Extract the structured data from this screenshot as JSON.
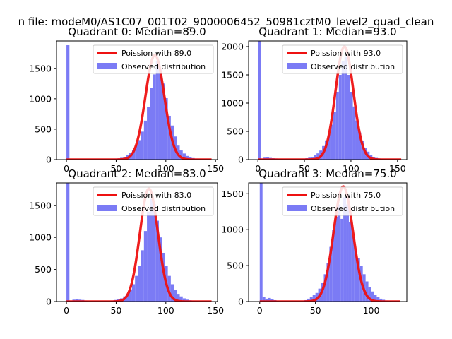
{
  "suptitle": "n file: modeM0/AS1C07_001T02_9000006452_50981cztM0_level2_quad_clean",
  "colors": {
    "hist": "#7b7bf5",
    "fit": "#ee1111",
    "fit_alpha_top": "#f08888",
    "axes": "#000000"
  },
  "chart_data": [
    {
      "type": "bar",
      "title": "Quadrant 0: Median=89.0",
      "xlim": [
        -10,
        152
      ],
      "ylim": [
        0,
        1950
      ],
      "xticks": [
        0,
        50,
        100,
        150
      ],
      "yticks": [
        0,
        500,
        1000,
        1500
      ],
      "legend": {
        "placement": "top-right",
        "entries": [
          "Poission with 89.0",
          "Observed distribution"
        ]
      },
      "hist": {
        "bin_width": 3,
        "bins": [
          [
            0,
            1880
          ],
          [
            3,
            8
          ],
          [
            6,
            6
          ],
          [
            9,
            5
          ],
          [
            12,
            4
          ],
          [
            15,
            3
          ],
          [
            18,
            2
          ],
          [
            45,
            10
          ],
          [
            48,
            15
          ],
          [
            51,
            20
          ],
          [
            54,
            30
          ],
          [
            57,
            45
          ],
          [
            60,
            70
          ],
          [
            63,
            110
          ],
          [
            66,
            160
          ],
          [
            69,
            240
          ],
          [
            72,
            320
          ],
          [
            75,
            460
          ],
          [
            78,
            640
          ],
          [
            81,
            860
          ],
          [
            84,
            1180
          ],
          [
            87,
            1400
          ],
          [
            90,
            1620
          ],
          [
            93,
            1480
          ],
          [
            96,
            1250
          ],
          [
            99,
            1010
          ],
          [
            102,
            720
          ],
          [
            105,
            560
          ],
          [
            108,
            380
          ],
          [
            111,
            230
          ],
          [
            114,
            150
          ],
          [
            117,
            100
          ],
          [
            120,
            60
          ],
          [
            123,
            40
          ],
          [
            126,
            25
          ],
          [
            129,
            15
          ],
          [
            132,
            10
          ],
          [
            135,
            6
          ],
          [
            138,
            4
          ],
          [
            141,
            3
          ],
          [
            144,
            2
          ]
        ]
      },
      "fit": {
        "mean": 89.0,
        "peak": 1720,
        "sigma": 9.5
      }
    },
    {
      "type": "bar",
      "title": "Quadrant 1: Median=93.0",
      "xlim": [
        -10,
        160
      ],
      "ylim": [
        0,
        2100
      ],
      "xticks": [
        0,
        50,
        100,
        150
      ],
      "yticks": [
        0,
        500,
        1000,
        1500,
        2000
      ],
      "legend": {
        "placement": "top-right",
        "entries": [
          "Poission with 93.0",
          "Observed distribution"
        ]
      },
      "hist": {
        "bin_width": 3,
        "bins": [
          [
            0,
            2100
          ],
          [
            3,
            10
          ],
          [
            6,
            35
          ],
          [
            9,
            40
          ],
          [
            12,
            30
          ],
          [
            15,
            25
          ],
          [
            18,
            20
          ],
          [
            21,
            15
          ],
          [
            24,
            10
          ],
          [
            45,
            10
          ],
          [
            48,
            15
          ],
          [
            51,
            25
          ],
          [
            54,
            35
          ],
          [
            57,
            50
          ],
          [
            60,
            80
          ],
          [
            63,
            110
          ],
          [
            66,
            160
          ],
          [
            69,
            240
          ],
          [
            72,
            340
          ],
          [
            75,
            460
          ],
          [
            78,
            620
          ],
          [
            81,
            850
          ],
          [
            84,
            1200
          ],
          [
            87,
            1500
          ],
          [
            90,
            1750
          ],
          [
            93,
            1830
          ],
          [
            96,
            1500
          ],
          [
            99,
            1200
          ],
          [
            102,
            940
          ],
          [
            105,
            690
          ],
          [
            108,
            480
          ],
          [
            111,
            330
          ],
          [
            114,
            210
          ],
          [
            117,
            140
          ],
          [
            120,
            80
          ],
          [
            123,
            50
          ],
          [
            126,
            30
          ],
          [
            129,
            20
          ],
          [
            132,
            12
          ],
          [
            135,
            8
          ],
          [
            138,
            6
          ],
          [
            141,
            4
          ],
          [
            144,
            3
          ]
        ]
      },
      "fit": {
        "mean": 93.0,
        "peak": 2000,
        "sigma": 9.6
      }
    },
    {
      "type": "bar",
      "title": "Quadrant 2: Median=83.0",
      "xlim": [
        -10,
        152
      ],
      "ylim": [
        0,
        1850
      ],
      "xticks": [
        0,
        50,
        100,
        150
      ],
      "yticks": [
        0,
        500,
        1000,
        1500
      ],
      "legend": {
        "placement": "top-right",
        "entries": [
          "Poission with 83.0",
          "Observed distribution"
        ]
      },
      "hist": {
        "bin_width": 3,
        "bins": [
          [
            0,
            1850
          ],
          [
            3,
            15
          ],
          [
            6,
            30
          ],
          [
            9,
            35
          ],
          [
            12,
            30
          ],
          [
            15,
            25
          ],
          [
            18,
            15
          ],
          [
            45,
            15
          ],
          [
            48,
            25
          ],
          [
            51,
            35
          ],
          [
            54,
            50
          ],
          [
            57,
            80
          ],
          [
            60,
            120
          ],
          [
            63,
            190
          ],
          [
            66,
            270
          ],
          [
            69,
            400
          ],
          [
            72,
            560
          ],
          [
            75,
            800
          ],
          [
            78,
            1100
          ],
          [
            81,
            1400
          ],
          [
            84,
            1600
          ],
          [
            87,
            1520
          ],
          [
            90,
            1260
          ],
          [
            93,
            1000
          ],
          [
            96,
            760
          ],
          [
            99,
            560
          ],
          [
            102,
            400
          ],
          [
            105,
            270
          ],
          [
            108,
            180
          ],
          [
            111,
            120
          ],
          [
            114,
            80
          ],
          [
            117,
            50
          ],
          [
            120,
            30
          ],
          [
            123,
            20
          ],
          [
            126,
            12
          ],
          [
            129,
            8
          ],
          [
            132,
            5
          ],
          [
            135,
            3
          ],
          [
            141,
            2
          ]
        ]
      },
      "fit": {
        "mean": 83.0,
        "peak": 1760,
        "sigma": 9.1
      }
    },
    {
      "type": "bar",
      "title": "Quadrant 3: Median=75.0",
      "xlim": [
        -10,
        132
      ],
      "ylim": [
        0,
        1650
      ],
      "xticks": [
        0,
        50,
        100
      ],
      "yticks": [
        0,
        500,
        1000,
        1500
      ],
      "legend": {
        "placement": "top-right",
        "entries": [
          "Poission with 75.0",
          "Observed distribution"
        ]
      },
      "hist": {
        "bin_width": 2.5,
        "bins": [
          [
            0,
            1650
          ],
          [
            2.5,
            60
          ],
          [
            5,
            40
          ],
          [
            7.5,
            50
          ],
          [
            10,
            30
          ],
          [
            12.5,
            20
          ],
          [
            15,
            10
          ],
          [
            40,
            20
          ],
          [
            42.5,
            40
          ],
          [
            45,
            60
          ],
          [
            47.5,
            90
          ],
          [
            50,
            120
          ],
          [
            52.5,
            180
          ],
          [
            55,
            260
          ],
          [
            57.5,
            380
          ],
          [
            60,
            540
          ],
          [
            62.5,
            760
          ],
          [
            65,
            1000
          ],
          [
            67.5,
            1180
          ],
          [
            70,
            1350
          ],
          [
            72.5,
            1150
          ],
          [
            75,
            1450
          ],
          [
            77.5,
            1350
          ],
          [
            80,
            1100
          ],
          [
            82.5,
            900
          ],
          [
            85,
            700
          ],
          [
            87.5,
            600
          ],
          [
            90,
            500
          ],
          [
            92.5,
            380
          ],
          [
            95,
            280
          ],
          [
            97.5,
            200
          ],
          [
            100,
            140
          ],
          [
            102.5,
            90
          ],
          [
            105,
            60
          ],
          [
            107.5,
            40
          ],
          [
            110,
            25
          ],
          [
            112.5,
            15
          ],
          [
            115,
            10
          ],
          [
            117.5,
            6
          ],
          [
            120,
            4
          ]
        ]
      },
      "fit": {
        "mean": 75.0,
        "peak": 1600,
        "sigma": 8.7
      }
    }
  ]
}
